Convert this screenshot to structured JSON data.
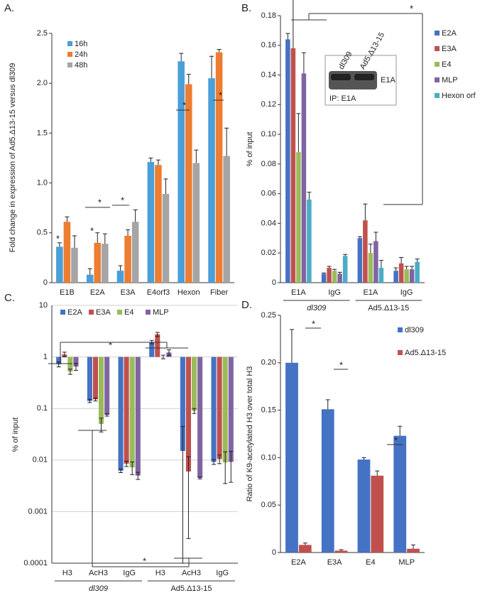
{
  "chart_data": [
    {
      "type": "bar",
      "panel_label": "A.",
      "y_label": "Fold change in expression of Ad5.Δ13-15 versus dl309",
      "categories": [
        "E1B",
        "E2A",
        "E3A",
        "E4orf3",
        "Hexon",
        "Fiber"
      ],
      "series": [
        {
          "name": "16h",
          "color": "#4a9fd8",
          "values": [
            0.36,
            0.08,
            0.12,
            1.21,
            2.22,
            2.05
          ],
          "errors": [
            0.04,
            0.06,
            0.05,
            0.04,
            0.08,
            0.22
          ]
        },
        {
          "name": "24h",
          "color": "#ed7d31",
          "values": [
            0.61,
            0.4,
            0.47,
            1.18,
            1.99,
            2.31
          ],
          "errors": [
            0.05,
            0.1,
            0.06,
            0.05,
            0.1,
            0.03
          ]
        },
        {
          "name": "48h",
          "color": "#a5a5a5",
          "values": [
            0.35,
            0.39,
            0.61,
            0.89,
            1.2,
            1.27
          ],
          "errors": [
            0.12,
            0.1,
            0.12,
            0.15,
            0.13,
            0.28
          ]
        }
      ],
      "ylim": [
        0,
        2.5
      ],
      "yticks": [
        0,
        0.5,
        {
          "value": 1,
          "label": "1.0"
        },
        1.5,
        {
          "value": 2,
          "label": "2.0"
        },
        2.5
      ],
      "legend": "upper-left",
      "annotations": [
        "*",
        "*",
        "*",
        "*",
        "*",
        "*"
      ]
    },
    {
      "type": "bar",
      "panel_label": "B.",
      "y_label": "% of input",
      "categories": [
        "E1A",
        "IgG",
        "E1A",
        "IgG"
      ],
      "groups": [
        "dl309",
        "Ad5.Δ13-15"
      ],
      "series": [
        {
          "name": "E2A",
          "color": "#4472c4",
          "values": [
            0.164,
            0.006,
            0.03,
            0.008
          ],
          "errors": [
            0.004,
            0.0005,
            0.001,
            0.002
          ]
        },
        {
          "name": "E3A",
          "color": "#c0504d",
          "values": [
            0.158,
            0.01,
            0.042,
            0.013
          ],
          "errors": [
            0.034,
            0.001,
            0.011,
            0.004
          ]
        },
        {
          "name": "E4",
          "color": "#9bbb59",
          "values": [
            0.088,
            0.008,
            0.02,
            0.009
          ],
          "errors": [
            0.026,
            0.001,
            0.006,
            0.002
          ]
        },
        {
          "name": "MLP",
          "color": "#8064a2",
          "values": [
            0.141,
            0.006,
            0.028,
            0.009
          ],
          "errors": [
            0.014,
            0.001,
            0.006,
            0.002
          ]
        },
        {
          "name": "Hexon orf",
          "color": "#4bacc6",
          "values": [
            0.056,
            0.018,
            0.01,
            0.014
          ],
          "errors": [
            0.005,
            0.001,
            0.005,
            0.002
          ]
        }
      ],
      "ylim": [
        0,
        0.18
      ],
      "yticks": [
        0,
        0.02,
        0.04,
        0.06,
        0.08,
        {
          "value": 0.1,
          "label": "0.10"
        },
        0.12,
        0.14,
        0.16,
        0.18
      ],
      "legend": "right",
      "annotations": [
        "*"
      ],
      "inset_labels": [
        "dl309",
        "Ad5.Δ13-15",
        "E1A",
        "IP: E1A"
      ]
    },
    {
      "type": "bar",
      "panel_label": "C.",
      "y_label": "% of input",
      "log": true,
      "grid": true,
      "categories": [
        "H3",
        "AcH3",
        "IgG",
        "H3",
        "AcH3",
        "IgG"
      ],
      "groups": [
        "dl309",
        "Ad5.Δ13-15"
      ],
      "series": [
        {
          "name": "E2A",
          "color": "#4472c4",
          "values": [
            0.72,
            0.14,
            0.0062,
            1.95,
            0.015,
            0.0092
          ],
          "errors": [
            0.08,
            0.01,
            0.0005,
            0.15,
            0.03,
            0.001
          ]
        },
        {
          "name": "E3A",
          "color": "#c0504d",
          "values": [
            1.12,
            0.15,
            0.0085,
            2.75,
            0.006,
            0.0105
          ],
          "errors": [
            0.12,
            0.01,
            0.001,
            0.25,
            0.0057,
            0.002
          ]
        },
        {
          "name": "E4",
          "color": "#9bbb59",
          "values": [
            0.52,
            0.05,
            0.0072,
            1.0,
            0.09,
            0.009
          ],
          "errors": [
            0.06,
            0.015,
            0.002,
            0.08,
            0.01,
            0.0055
          ]
        },
        {
          "name": "MLP",
          "color": "#8064a2",
          "values": [
            0.65,
            0.075,
            0.005,
            1.22,
            0.0045,
            0.0092
          ],
          "errors": [
            0.1,
            0.004,
            0.0008,
            0.15,
            0.0002,
            0.0055
          ]
        }
      ],
      "ylim": [
        0.0001,
        10
      ],
      "yticks": [
        0.0001,
        0.001,
        0.01,
        0.1,
        1,
        10
      ],
      "legend": "top",
      "annotations": [
        "*",
        "*"
      ]
    },
    {
      "type": "bar",
      "panel_label": "D.",
      "y_label": "Ratio of K9-acetylated H3 over total H3",
      "categories": [
        "E2A",
        "E3A",
        "E4",
        "MLP"
      ],
      "series": [
        {
          "name": "dl309",
          "color": "#4472c4",
          "values": [
            0.2,
            0.151,
            0.098,
            0.123
          ],
          "errors": [
            0.035,
            0.01,
            0.002,
            0.01
          ]
        },
        {
          "name": "Ad5.Δ13-15",
          "color": "#c0504d",
          "values": [
            0.008,
            0.002,
            0.081,
            0.004
          ],
          "errors": [
            0.002,
            0.001,
            0.005,
            0.004
          ]
        }
      ],
      "ylim": [
        0,
        0.25
      ],
      "yticks": [
        0,
        0.05,
        {
          "value": 0.1,
          "label": "0.10"
        },
        0.15,
        {
          "value": 0.2,
          "label": "0.20"
        },
        0.25
      ],
      "legend": "upper-right",
      "annotations": [
        "*",
        "*",
        "*"
      ]
    }
  ]
}
